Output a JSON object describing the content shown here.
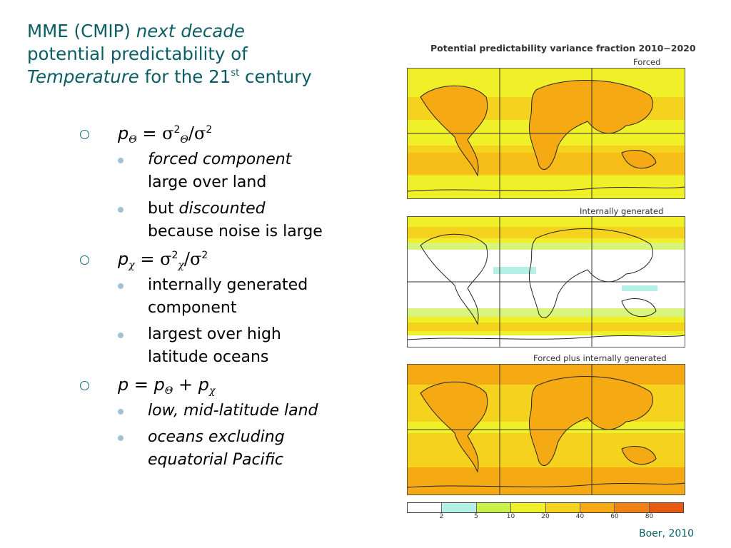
{
  "title": {
    "line1_a": "MME (CMIP) ",
    "line1_b": "next decade",
    "line2": "potential predictability of",
    "line3_a": "Temperature",
    "line3_b": " for the 21",
    "line3_sup": "st",
    "line3_c": " century"
  },
  "bullets": {
    "b1": {
      "p": "p",
      "theta": "Θ",
      "eq": " = ",
      "sigma": "σ",
      "two": "2",
      "slash": "/",
      "sigma2": "σ",
      "two2": "2"
    },
    "b1_items": [
      {
        "a": "forced component",
        "b": "large over land"
      },
      {
        "pre": "but ",
        "a": "discounted",
        "b": "because noise is large"
      }
    ],
    "b2": {
      "p": "p",
      "chi": "χ",
      "eq": " = ",
      "sigma": "σ",
      "two": "2",
      "slash": "/",
      "sigma2": "σ",
      "two2": "2"
    },
    "b2_items": [
      {
        "a": "internally generated",
        "b": "component"
      },
      {
        "a": "largest over high",
        "b": "latitude oceans"
      }
    ],
    "b3": {
      "p": "p",
      "eq": " = ",
      "p2": "p",
      "theta": "Θ",
      "plus": " + ",
      "p3": "p",
      "chi": "χ"
    },
    "b3_items": [
      {
        "a": "low, mid-latitude land"
      },
      {
        "a": "oceans excluding",
        "b": "equatorial Pacific"
      }
    ]
  },
  "figure": {
    "title": "Potential predictability variance fraction 2010−2020",
    "panels": [
      "Forced",
      "Internally generated",
      "Forced plus internally generated"
    ]
  },
  "colorbar": {
    "colors": [
      "#ffffff",
      "#b4f0e6",
      "#c8f046",
      "#f0f028",
      "#f5d21e",
      "#f5aa14",
      "#f08214",
      "#e65a14"
    ],
    "labels": [
      "2",
      "5",
      "10",
      "20",
      "40",
      "60",
      "80"
    ]
  },
  "credit": "Boer, 2010"
}
